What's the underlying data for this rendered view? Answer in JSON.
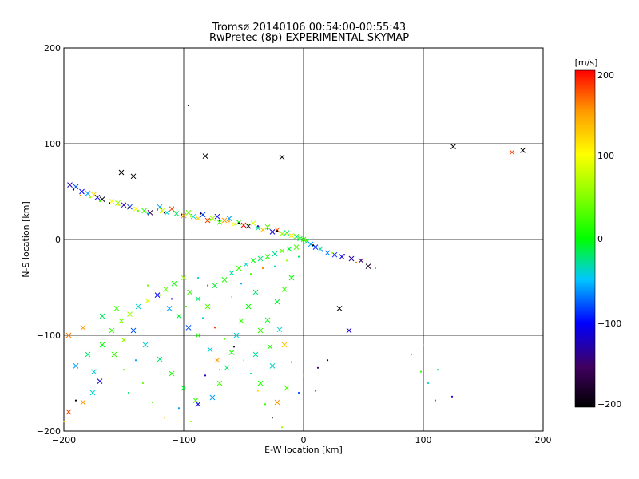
{
  "chart_data": {
    "type": "scatter",
    "title": "Tromsø 20140106 00:54:00-00:55:43",
    "subtitle": "RwPretec (8p) EXPERIMENTAL SKYMAP",
    "xlabel": "E-W location [km]",
    "ylabel": "N-S location [km]",
    "xlim": [
      -200,
      200
    ],
    "ylim": [
      -200,
      200
    ],
    "x_ticks": [
      "−200",
      "−100",
      "0",
      "100",
      "200"
    ],
    "y_ticks": [
      "200",
      "100",
      "0",
      "−100",
      "−200"
    ],
    "grid": true,
    "colorbar": {
      "label": "[m/s]",
      "min": -200,
      "max": 200,
      "ticks": [
        "200",
        "100",
        "0",
        "−100",
        "−200"
      ]
    },
    "series": [
      {
        "marker": "x",
        "points": [
          [
            -195,
            57,
            -120
          ],
          [
            -190,
            55,
            -80
          ],
          [
            -185,
            50,
            -100
          ],
          [
            -180,
            48,
            -60
          ],
          [
            -175,
            47,
            120
          ],
          [
            -172,
            44,
            -100
          ],
          [
            -168,
            42,
            -200
          ],
          [
            -160,
            40,
            100
          ],
          [
            -155,
            38,
            50
          ],
          [
            -150,
            36,
            -120
          ],
          [
            -145,
            34,
            -90
          ],
          [
            -140,
            32,
            100
          ],
          [
            -133,
            30,
            20
          ],
          [
            -128,
            28,
            -160
          ],
          [
            -120,
            34,
            -60
          ],
          [
            -118,
            30,
            80
          ],
          [
            -114,
            28,
            -40
          ],
          [
            -110,
            32,
            180
          ],
          [
            -106,
            27,
            -20
          ],
          [
            -100,
            25,
            150
          ],
          [
            -96,
            28,
            40
          ],
          [
            -92,
            24,
            -40
          ],
          [
            -88,
            22,
            120
          ],
          [
            -84,
            26,
            -90
          ],
          [
            -80,
            20,
            180
          ],
          [
            -76,
            22,
            60
          ],
          [
            -72,
            24,
            -100
          ],
          [
            -70,
            18,
            20
          ],
          [
            -66,
            20,
            150
          ],
          [
            -62,
            22,
            -60
          ],
          [
            -58,
            16,
            100
          ],
          [
            -54,
            18,
            0
          ],
          [
            -50,
            15,
            200
          ],
          [
            -46,
            14,
            -180
          ],
          [
            -42,
            17,
            80
          ],
          [
            -38,
            12,
            -30
          ],
          [
            -34,
            10,
            130
          ],
          [
            -30,
            13,
            30
          ],
          [
            -26,
            8,
            -110
          ],
          [
            -22,
            10,
            170
          ],
          [
            -18,
            6,
            60
          ],
          [
            -14,
            7,
            -20
          ],
          [
            -10,
            4,
            110
          ],
          [
            -6,
            3,
            20
          ],
          [
            -3,
            1,
            -10
          ],
          [
            0,
            0,
            20
          ],
          [
            3,
            -2,
            -20
          ],
          [
            6,
            -5,
            -60
          ],
          [
            10,
            -8,
            -90
          ],
          [
            14,
            -10,
            -30
          ],
          [
            20,
            -14,
            -70
          ],
          [
            26,
            -16,
            -90
          ],
          [
            32,
            -18,
            -110
          ],
          [
            40,
            -20,
            -130
          ],
          [
            48,
            -22,
            -150
          ],
          [
            54,
            -28,
            -180
          ],
          [
            -190,
            -132,
            -60
          ],
          [
            -180,
            -120,
            -20
          ],
          [
            -175,
            -138,
            -40
          ],
          [
            -168,
            -110,
            0
          ],
          [
            -160,
            -95,
            20
          ],
          [
            -152,
            -85,
            40
          ],
          [
            -145,
            -78,
            60
          ],
          [
            -138,
            -70,
            -40
          ],
          [
            -130,
            -64,
            80
          ],
          [
            -122,
            -58,
            -100
          ],
          [
            -115,
            -52,
            40
          ],
          [
            -108,
            -46,
            0
          ],
          [
            -100,
            -40,
            60
          ],
          [
            -95,
            -55,
            20
          ],
          [
            -88,
            -62,
            -20
          ],
          [
            -80,
            -70,
            30
          ],
          [
            -74,
            -48,
            -10
          ],
          [
            -66,
            -42,
            10
          ],
          [
            -60,
            -35,
            -30
          ],
          [
            -54,
            -30,
            20
          ],
          [
            -48,
            -26,
            -40
          ],
          [
            -42,
            -22,
            0
          ],
          [
            -36,
            -20,
            -20
          ],
          [
            -30,
            -18,
            10
          ],
          [
            -24,
            -15,
            -30
          ],
          [
            -18,
            -12,
            40
          ],
          [
            -12,
            -10,
            -10
          ],
          [
            -6,
            -8,
            30
          ],
          [
            -40,
            -55,
            -20
          ],
          [
            -46,
            -70,
            0
          ],
          [
            -52,
            -85,
            20
          ],
          [
            -56,
            -100,
            -40
          ],
          [
            -60,
            -118,
            10
          ],
          [
            -64,
            -134,
            -20
          ],
          [
            -70,
            -150,
            30
          ],
          [
            -76,
            -165,
            -60
          ],
          [
            -88,
            -172,
            -110
          ],
          [
            -40,
            -120,
            -30
          ],
          [
            -28,
            -112,
            10
          ],
          [
            -20,
            -94,
            -40
          ],
          [
            -30,
            -84,
            0
          ],
          [
            -22,
            -65,
            -10
          ],
          [
            -16,
            -52,
            20
          ],
          [
            -10,
            -40,
            0
          ],
          [
            -158,
            -120,
            20
          ],
          [
            -150,
            -105,
            60
          ],
          [
            -142,
            -95,
            -80
          ],
          [
            -132,
            -110,
            -40
          ],
          [
            -120,
            -125,
            -20
          ],
          [
            -110,
            -140,
            10
          ],
          [
            -100,
            -155,
            -10
          ],
          [
            -90,
            -168,
            20
          ],
          [
            -196,
            -180,
            180
          ],
          [
            -184,
            -170,
            150
          ],
          [
            -176,
            -160,
            -40
          ],
          [
            -170,
            -148,
            -110
          ],
          [
            -36,
            -95,
            20
          ],
          [
            -16,
            -110,
            130
          ],
          [
            -26,
            -132,
            -40
          ],
          [
            -36,
            -150,
            10
          ],
          [
            -14,
            -155,
            30
          ],
          [
            -22,
            -170,
            150
          ],
          [
            -152,
            70,
            -200
          ],
          [
            -142,
            66,
            -200
          ],
          [
            -82,
            87,
            -200
          ],
          [
            -18,
            86,
            -200
          ],
          [
            125,
            97,
            -200
          ],
          [
            174,
            91,
            180
          ],
          [
            183,
            93,
            -200
          ],
          [
            30,
            -72,
            -200
          ],
          [
            38,
            -95,
            -120
          ],
          [
            -196,
            -100,
            160
          ],
          [
            -184,
            -92,
            150
          ],
          [
            -168,
            -80,
            -20
          ],
          [
            -156,
            -72,
            20
          ],
          [
            -112,
            -72,
            -60
          ],
          [
            -104,
            -80,
            -10
          ],
          [
            -96,
            -92,
            -80
          ],
          [
            -88,
            -100,
            10
          ],
          [
            -78,
            -115,
            -40
          ],
          [
            -72,
            -126,
            150
          ]
        ]
      },
      {
        "marker": "dot",
        "points": [
          [
            -192,
            52,
            -200
          ],
          [
            -186,
            46,
            160
          ],
          [
            -178,
            44,
            60
          ],
          [
            -170,
            40,
            20
          ],
          [
            -162,
            38,
            -200
          ],
          [
            -154,
            36,
            120
          ],
          [
            -146,
            33,
            -200
          ],
          [
            -138,
            30,
            40
          ],
          [
            -130,
            27,
            -60
          ],
          [
            -122,
            31,
            180
          ],
          [
            -116,
            28,
            -200
          ],
          [
            -108,
            29,
            20
          ],
          [
            -102,
            26,
            -160
          ],
          [
            -94,
            24,
            80
          ],
          [
            -86,
            27,
            -200
          ],
          [
            -78,
            21,
            30
          ],
          [
            -70,
            20,
            -180
          ],
          [
            -62,
            19,
            140
          ],
          [
            -54,
            17,
            -200
          ],
          [
            -46,
            16,
            50
          ],
          [
            -38,
            14,
            -120
          ],
          [
            -30,
            11,
            180
          ],
          [
            -22,
            9,
            -200
          ],
          [
            -14,
            6,
            90
          ],
          [
            -6,
            3,
            -40
          ],
          [
            2,
            -1,
            40
          ],
          [
            8,
            -6,
            -200
          ],
          [
            16,
            -12,
            -80
          ],
          [
            24,
            -14,
            60
          ],
          [
            34,
            -16,
            -120
          ],
          [
            44,
            -24,
            160
          ],
          [
            60,
            -30,
            -40
          ],
          [
            -96,
            140,
            -200
          ],
          [
            -120,
            -58,
            60
          ],
          [
            -130,
            -48,
            40
          ],
          [
            -110,
            -62,
            -100
          ],
          [
            -98,
            -70,
            20
          ],
          [
            -84,
            -82,
            -40
          ],
          [
            -74,
            -92,
            180
          ],
          [
            -66,
            -104,
            30
          ],
          [
            -58,
            -112,
            -160
          ],
          [
            -50,
            -126,
            80
          ],
          [
            -44,
            -140,
            -30
          ],
          [
            -38,
            -158,
            120
          ],
          [
            -32,
            -172,
            20
          ],
          [
            -26,
            -186,
            -200
          ],
          [
            -18,
            -196,
            60
          ],
          [
            -146,
            -160,
            -20
          ],
          [
            -134,
            -150,
            40
          ],
          [
            -126,
            -170,
            20
          ],
          [
            -116,
            -186,
            130
          ],
          [
            -104,
            -176,
            -60
          ],
          [
            -94,
            -190,
            60
          ],
          [
            -82,
            -142,
            -120
          ],
          [
            -70,
            -136,
            160
          ],
          [
            -10,
            -128,
            -60
          ],
          [
            0,
            -142,
            20
          ],
          [
            10,
            -158,
            180
          ],
          [
            -200,
            -190,
            120
          ],
          [
            -190,
            -168,
            -200
          ],
          [
            -80,
            -48,
            180
          ],
          [
            -88,
            -40,
            -40
          ],
          [
            -60,
            -60,
            120
          ],
          [
            -52,
            -46,
            -60
          ],
          [
            -44,
            -36,
            20
          ],
          [
            -34,
            -30,
            160
          ],
          [
            -24,
            -28,
            -40
          ],
          [
            -14,
            -22,
            60
          ],
          [
            -4,
            -18,
            -20
          ],
          [
            90,
            -120,
            10
          ],
          [
            98,
            -138,
            20
          ],
          [
            104,
            -150,
            -40
          ],
          [
            110,
            -168,
            180
          ],
          [
            124,
            -164,
            -120
          ],
          [
            -150,
            -136,
            40
          ],
          [
            -140,
            -126,
            -60
          ],
          [
            -4,
            -160,
            -80
          ],
          [
            12,
            -134,
            -160
          ],
          [
            20,
            -126,
            -200
          ],
          [
            100,
            -110,
            20
          ],
          [
            112,
            -136,
            -20
          ]
        ]
      }
    ]
  }
}
